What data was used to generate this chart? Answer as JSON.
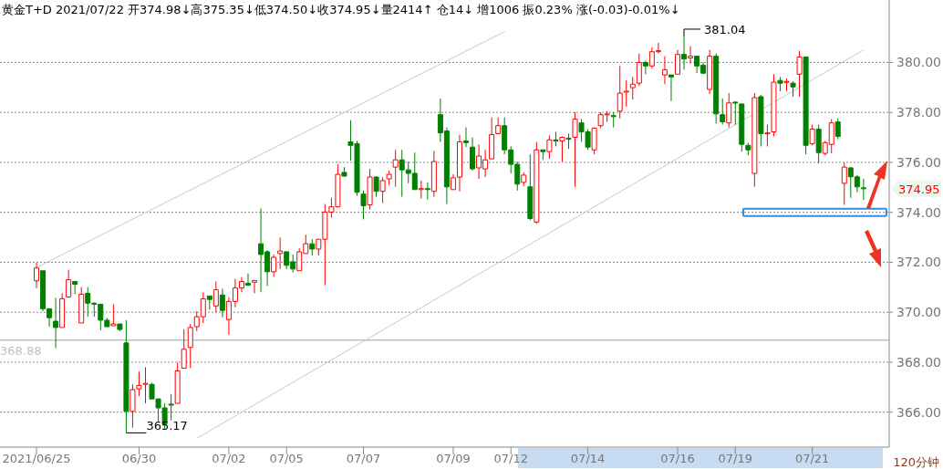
{
  "chart_data": {
    "type": "candlestick",
    "title": "黄金T+D 2021/07/22 开374.98↓高375.35↓低374.50↓收374.95↓量2414↑ 仓14↓ 增1006 振0.23% 涨(-0.03)-0.01%↓",
    "xlabel": "120分钟",
    "categories": [
      "2021/06/25",
      null,
      null,
      null,
      null,
      null,
      null,
      null,
      null,
      null,
      null,
      null,
      null,
      null,
      null,
      null,
      "06/30",
      null,
      null,
      null,
      null,
      null,
      null,
      null,
      null,
      null,
      null,
      null,
      null,
      null,
      "07/02",
      null,
      null,
      null,
      null,
      null,
      null,
      null,
      null,
      "07/05",
      null,
      null,
      null,
      null,
      null,
      null,
      null,
      null,
      null,
      null,
      null,
      "07/07",
      null,
      null,
      null,
      null,
      null,
      null,
      null,
      null,
      null,
      null,
      null,
      null,
      null,
      "07/09",
      null,
      null,
      null,
      null,
      null,
      null,
      null,
      null,
      "07/12",
      null,
      null,
      null,
      null,
      null,
      null,
      null,
      null,
      null,
      null,
      null,
      "07/14",
      null,
      null,
      null,
      null,
      null,
      null,
      null,
      null,
      null,
      null,
      null,
      null,
      null,
      "07/16",
      null,
      null,
      null,
      null,
      null,
      null,
      null,
      null,
      "07/19",
      null,
      null,
      null,
      null,
      null,
      null,
      null,
      null,
      null,
      null,
      null,
      "07/21",
      null,
      null,
      null,
      null,
      null,
      null,
      null,
      null
    ],
    "ohlc": [
      [
        371.26,
        371.99,
        370.97,
        371.77
      ],
      [
        371.66,
        371.66,
        370.04,
        370.14
      ],
      [
        370.14,
        370.14,
        369.42,
        369.78
      ],
      [
        369.64,
        370.58,
        368.56,
        369.39
      ],
      [
        369.39,
        370.76,
        369.39,
        370.54
      ],
      [
        370.61,
        371.7,
        370.58,
        371.3
      ],
      [
        371.23,
        371.23,
        370.72,
        371.12
      ],
      [
        369.57,
        371.01,
        369.57,
        370.72
      ],
      [
        370.76,
        371.01,
        369.82,
        370.36
      ],
      [
        370.36,
        370.4,
        369.82,
        370.32
      ],
      [
        370.32,
        370.32,
        369.28,
        369.68
      ],
      [
        369.68,
        369.78,
        369.42,
        369.42
      ],
      [
        369.46,
        370.32,
        369.46,
        369.53
      ],
      [
        369.53,
        369.53,
        369.24,
        369.31
      ],
      [
        368.77,
        369.68,
        365.17,
        366.03
      ],
      [
        366.03,
        367.11,
        365.38,
        366.9
      ],
      [
        366.93,
        367.62,
        366.64,
        367.07
      ],
      [
        367.11,
        367.8,
        366.35,
        367.15
      ],
      [
        367.11,
        367.18,
        366.53,
        366.53
      ],
      [
        366.53,
        366.53,
        365.63,
        366.17
      ],
      [
        366.17,
        366.35,
        365.31,
        365.52
      ],
      [
        366.32,
        366.72,
        365.67,
        366.28
      ],
      [
        366.35,
        367.98,
        366.35,
        367.65
      ],
      [
        367.76,
        369.31,
        367.76,
        368.52
      ],
      [
        368.59,
        369.53,
        367.76,
        369.39
      ],
      [
        369.42,
        370.04,
        369.24,
        369.82
      ],
      [
        369.82,
        370.79,
        369.57,
        370.54
      ],
      [
        370.65,
        370.65,
        370.1,
        370.51
      ],
      [
        370.25,
        371.23,
        370,
        370.9
      ],
      [
        370.69,
        370.94,
        369.8,
        370.07
      ],
      [
        369.71,
        370.6,
        369.1,
        370.43
      ],
      [
        370.43,
        371.34,
        370.2,
        370.97
      ],
      [
        370.97,
        371.41,
        370.8,
        371.23
      ],
      [
        371.16,
        371.55,
        371.05,
        371.08
      ],
      [
        371.2,
        371.27,
        370.76,
        371.27
      ],
      [
        372.74,
        374.15,
        370.8,
        372.31
      ],
      [
        372.42,
        372.49,
        371.05,
        371.62
      ],
      [
        371.62,
        372.31,
        371.41,
        372.2
      ],
      [
        372.35,
        372.99,
        371.73,
        372.45
      ],
      [
        372.42,
        372.42,
        371.73,
        371.88
      ],
      [
        372.02,
        372.31,
        371.59,
        371.73
      ],
      [
        371.66,
        372.56,
        371.66,
        372.42
      ],
      [
        372.35,
        373.1,
        372.35,
        372.74
      ],
      [
        372.74,
        372.92,
        372.27,
        372.53
      ],
      [
        372.53,
        372.92,
        372.27,
        372.92
      ],
      [
        372.92,
        374.33,
        371.08,
        374.01
      ],
      [
        374.01,
        374.58,
        373.79,
        374.22
      ],
      [
        374.22,
        375.92,
        374.19,
        375.52
      ],
      [
        375.6,
        375.81,
        375.42,
        375.45
      ],
      [
        376.82,
        377.69,
        376.07,
        376.68
      ],
      [
        376.75,
        376.86,
        374.66,
        374.8
      ],
      [
        374.73,
        374.87,
        373.72,
        374.26
      ],
      [
        374.3,
        375.74,
        374.12,
        375.41
      ],
      [
        375.41,
        375.45,
        374.62,
        374.84
      ],
      [
        374.84,
        375.41,
        374.37,
        375.27
      ],
      [
        375.34,
        375.67,
        375.09,
        375.52
      ],
      [
        375.81,
        376.5,
        375.02,
        376.1
      ],
      [
        376.1,
        376.5,
        374.62,
        375.7
      ],
      [
        375.7,
        376.03,
        375.16,
        375.56
      ],
      [
        375.56,
        376.39,
        374.91,
        374.91
      ],
      [
        374.91,
        375.27,
        374.55,
        374.95
      ],
      [
        374.95,
        375.2,
        374.51,
        374.91
      ],
      [
        374.84,
        376.46,
        374.62,
        376.03
      ],
      [
        377.91,
        378.56,
        376.82,
        377.18
      ],
      [
        377.26,
        377.4,
        374.33,
        375.02
      ],
      [
        374.91,
        375.52,
        374.91,
        375.38
      ],
      [
        375.41,
        377.11,
        374.84,
        376.82
      ],
      [
        376.86,
        377.4,
        376.61,
        376.79
      ],
      [
        376.61,
        377,
        375.67,
        375.74
      ],
      [
        375.78,
        376.72,
        375.34,
        376.25
      ],
      [
        375.74,
        376.5,
        375.41,
        376.1
      ],
      [
        376.14,
        377.8,
        376.14,
        377.11
      ],
      [
        377.15,
        377.8,
        377.15,
        377.47
      ],
      [
        377.47,
        377.8,
        376.32,
        376.5
      ],
      [
        376.5,
        376.64,
        375.56,
        375.92
      ],
      [
        375.92,
        376.03,
        374.87,
        375.13
      ],
      [
        375.2,
        375.6,
        375.05,
        375.49
      ],
      [
        375.02,
        376.32,
        373.68,
        373.75
      ],
      [
        373.61,
        376.82,
        373.54,
        376.5
      ],
      [
        376.5,
        376.5,
        376.1,
        376.43
      ],
      [
        376.43,
        377.08,
        376.14,
        376.9
      ],
      [
        376.9,
        377.22,
        376.64,
        376.86
      ],
      [
        376.86,
        377.04,
        376.03,
        377
      ],
      [
        376.97,
        377.15,
        376.54,
        376.93
      ],
      [
        377,
        378.01,
        375.02,
        377.73
      ],
      [
        377.58,
        377.73,
        376.82,
        377.22
      ],
      [
        377.22,
        377.33,
        376.5,
        376.61
      ],
      [
        376.5,
        377.4,
        376.32,
        377.37
      ],
      [
        377.47,
        378.01,
        377.37,
        377.91
      ],
      [
        377.91,
        378.05,
        377.62,
        377.94
      ],
      [
        377.87,
        378.01,
        377.4,
        377.83
      ],
      [
        378.05,
        379.86,
        377.76,
        378.77
      ],
      [
        378.81,
        379.28,
        378.23,
        378.85
      ],
      [
        378.99,
        379.42,
        378.52,
        379.13
      ],
      [
        379.17,
        380.36,
        379.06,
        380
      ],
      [
        380,
        380.07,
        379.53,
        379.86
      ],
      [
        379.86,
        380.61,
        379.75,
        380.43
      ],
      [
        380.43,
        380.79,
        380.36,
        380.47
      ],
      [
        379.5,
        380.25,
        379.13,
        379.71
      ],
      [
        379.5,
        379.5,
        378.45,
        379.42
      ],
      [
        379.53,
        380.5,
        379.53,
        380.32
      ],
      [
        380.32,
        381.04,
        379.71,
        380.14
      ],
      [
        380.18,
        380.65,
        379.96,
        380.25
      ],
      [
        380.25,
        380.25,
        379.57,
        379.86
      ],
      [
        379.89,
        380,
        379.53,
        379.57
      ],
      [
        378.92,
        380.5,
        378.74,
        380.25
      ],
      [
        380.25,
        380.36,
        377.55,
        377.94
      ],
      [
        377.91,
        378.56,
        377.51,
        377.62
      ],
      [
        377.58,
        378.77,
        377.4,
        378.38
      ],
      [
        378.41,
        378.45,
        377.51,
        378.38
      ],
      [
        378.34,
        378.34,
        376.43,
        376.72
      ],
      [
        376.68,
        376.79,
        376.28,
        376.5
      ],
      [
        375.56,
        378.77,
        375.02,
        378.59
      ],
      [
        378.63,
        378.7,
        376.64,
        377.15
      ],
      [
        377.15,
        377.51,
        376.64,
        377.18
      ],
      [
        377.22,
        379.53,
        377.04,
        379.21
      ],
      [
        379.28,
        379.42,
        378.85,
        379.17
      ],
      [
        379.2,
        379.35,
        378.85,
        379.24
      ],
      [
        379.17,
        379.24,
        378.63,
        379.02
      ],
      [
        379.53,
        380.47,
        378.63,
        380.22
      ],
      [
        380.22,
        380.22,
        376.32,
        376.68
      ],
      [
        376.75,
        377.51,
        376.68,
        377.33
      ],
      [
        377.33,
        377.51,
        375.96,
        376.39
      ],
      [
        376.36,
        376.86,
        376.28,
        376.79
      ],
      [
        376.72,
        377.73,
        376.36,
        377.58
      ],
      [
        377.62,
        377.76,
        376.93,
        377.04
      ],
      [
        375.16,
        375.99,
        374.3,
        375.81
      ],
      [
        375.78,
        375.81,
        374.58,
        375.42
      ],
      [
        375.42,
        375.49,
        374.8,
        375.02
      ],
      [
        374.98,
        375.35,
        374.5,
        374.95
      ]
    ],
    "series": [
      {
        "type": "line",
        "color": "#c8c8c8",
        "values": [
          371.79,
          null,
          null,
          null,
          null,
          null,
          null,
          null,
          null,
          null,
          null,
          null,
          null,
          null,
          null,
          null,
          null,
          null,
          null,
          null,
          null,
          null,
          null,
          null,
          null,
          null,
          null,
          null,
          null,
          null,
          null,
          null,
          null,
          null,
          null,
          null,
          null,
          null,
          null,
          null,
          null,
          null,
          null,
          null,
          null,
          null,
          null,
          null,
          null,
          null,
          null,
          null,
          null,
          null,
          null,
          null,
          null,
          null,
          null,
          null,
          null,
          null,
          null,
          null,
          null,
          null,
          null,
          null,
          null,
          null,
          null,
          null,
          null,
          381.23,
          null,
          null,
          null,
          null,
          null,
          null,
          null,
          null,
          null,
          null,
          null,
          null,
          null,
          null,
          null,
          null,
          null,
          null,
          null,
          null,
          null,
          null,
          null,
          null,
          null,
          null,
          null,
          null,
          null,
          null,
          null,
          null,
          null,
          null,
          null,
          null,
          null,
          null,
          null,
          null,
          null,
          null,
          null,
          null,
          null,
          null,
          null,
          null,
          null,
          null,
          null,
          null,
          null,
          null,
          null,
          null
        ]
      },
      {
        "type": "line",
        "color": "#c8c8c8",
        "values": [
          null,
          null,
          null,
          null,
          null,
          null,
          null,
          null,
          null,
          null,
          null,
          null,
          null,
          null,
          null,
          null,
          null,
          null,
          null,
          null,
          null,
          null,
          null,
          null,
          null,
          364.95,
          null,
          null,
          null,
          null,
          null,
          null,
          null,
          null,
          null,
          null,
          null,
          null,
          null,
          null,
          null,
          null,
          null,
          null,
          null,
          null,
          null,
          null,
          null,
          null,
          null,
          null,
          null,
          null,
          null,
          null,
          null,
          null,
          null,
          null,
          null,
          null,
          null,
          null,
          null,
          null,
          null,
          null,
          null,
          null,
          null,
          null,
          null,
          null,
          null,
          null,
          null,
          null,
          null,
          null,
          null,
          null,
          null,
          null,
          null,
          null,
          null,
          null,
          null,
          null,
          null,
          null,
          null,
          null,
          null,
          null,
          null,
          null,
          null,
          null,
          null,
          null,
          null,
          null,
          null,
          null,
          null,
          null,
          null,
          null,
          null,
          null,
          null,
          null,
          null,
          null,
          null,
          null,
          null,
          null,
          null,
          null,
          null,
          null,
          null,
          null,
          null,
          null,
          null,
          380.5
        ]
      }
    ],
    "ylim": [
      364.6,
      382.5
    ],
    "yticks": [
      {
        "value": 366,
        "label": "366.00"
      },
      {
        "value": 368,
        "label": "368.00"
      },
      {
        "value": 370,
        "label": "370.00"
      },
      {
        "value": 372,
        "label": "372.00"
      },
      {
        "value": 374,
        "label": "374.00"
      },
      {
        "value": 376,
        "label": "376.00"
      },
      {
        "value": 378,
        "label": "378.00"
      },
      {
        "value": 380,
        "label": "380.00"
      }
    ],
    "grid": "y",
    "ref_lines": [
      {
        "axis": "y",
        "value": 368.88,
        "label": "368.88",
        "color": "#c0c0c0"
      }
    ],
    "annotations": [
      "381.04",
      {
        "text": "365.17",
        "y": 365.17
      },
      "374.95"
    ]
  }
}
